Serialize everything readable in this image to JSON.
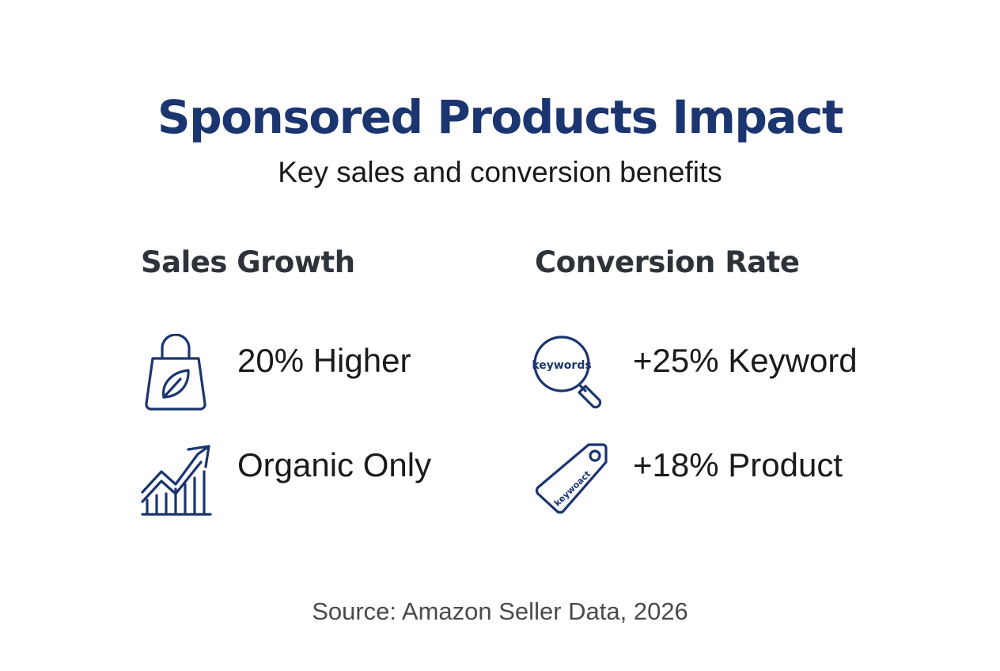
{
  "header": {
    "title": "Sponsored Products Impact",
    "subtitle": "Key sales and conversion benefits"
  },
  "sections": [
    {
      "heading": "Sales Growth",
      "items": [
        {
          "icon": "shopping-bag-leaf-icon",
          "text": "20% Higher"
        },
        {
          "icon": "growth-chart-icon",
          "text": "Organic Only"
        }
      ]
    },
    {
      "heading": "Conversion Rate",
      "items": [
        {
          "icon": "keywords-magnifier-icon",
          "text": "+25% Keyword",
          "icon_label": "keywords"
        },
        {
          "icon": "keyword-tag-icon",
          "text": "+18% Product",
          "icon_label": "keywoact"
        }
      ]
    }
  ],
  "footer": {
    "source": "Source: Amazon Seller Data, 2026"
  },
  "colors": {
    "title": "#1b3570",
    "icon_stroke": "#1b3570",
    "heading": "#2e3239",
    "body_text": "#1a1a1a",
    "source_text": "#4a4a4a"
  }
}
